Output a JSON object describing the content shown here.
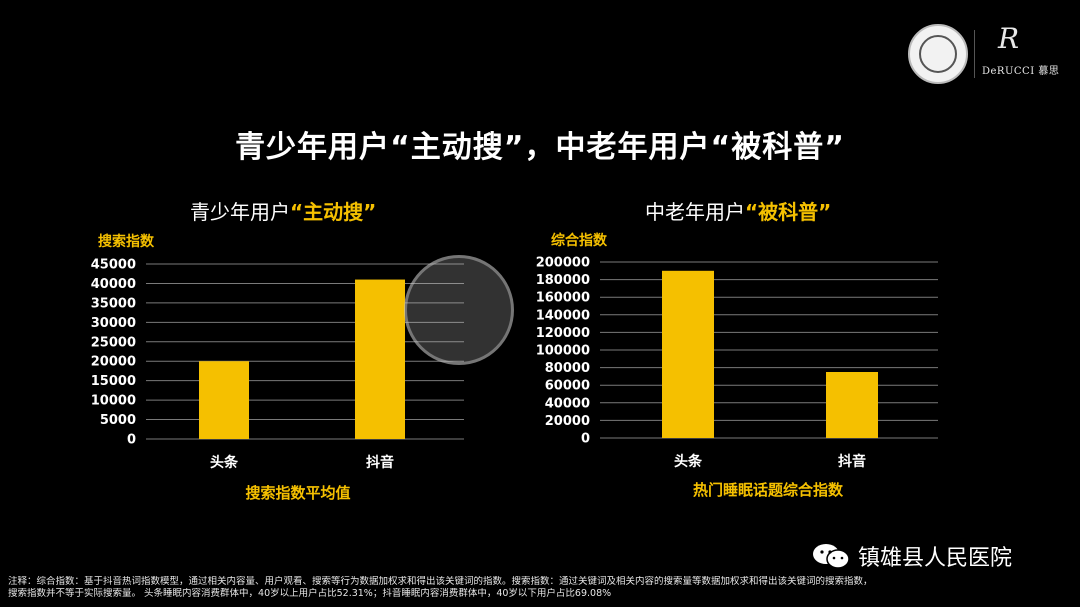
{
  "header": {
    "brand": "DeRUCCI 慕思",
    "brand_mark": "R"
  },
  "title_parts": [
    "青少年用户",
    "“主动搜”",
    "，中老年用户",
    "“被科普”"
  ],
  "panels": [
    {
      "title_prefix": "青少年用户",
      "title_highlight": "“主动搜”"
    },
    {
      "title_prefix": "中老年用户",
      "title_highlight": "“被科普”"
    }
  ],
  "chart_data": [
    {
      "type": "bar",
      "categories": [
        "头条",
        "抖音"
      ],
      "values": [
        20000,
        41000
      ],
      "ylabel": "搜索指数",
      "xlabel": "搜索指数平均值",
      "ylim": [
        0,
        45000
      ],
      "yticks": [
        0,
        5000,
        10000,
        15000,
        20000,
        25000,
        30000,
        35000,
        40000,
        45000
      ],
      "grid": true,
      "bar_color": "#f5c000"
    },
    {
      "type": "bar",
      "categories": [
        "头条",
        "抖音"
      ],
      "values": [
        190000,
        75000
      ],
      "ylabel": "综合指数",
      "xlabel": "热门睡眠话题综合指数",
      "ylim": [
        0,
        200000
      ],
      "yticks": [
        0,
        20000,
        40000,
        60000,
        80000,
        100000,
        120000,
        140000,
        160000,
        180000,
        200000
      ],
      "grid": true,
      "bar_color": "#f5c000"
    }
  ],
  "footnote": {
    "line1": "注释：综合指数：基于抖音热词指数模型，通过相关内容量、用户观看、搜索等行为数据加权求和得出该关键词的指数。搜索指数：通过关键词及相关内容的搜索量等数据加权求和得出该关键词的搜索指数，",
    "line2": "搜索指数并不等于实际搜索量。 头条睡眠内容消费群体中，40岁以上用户占比52.31%；抖音睡眠内容消费群体中，40岁以下用户占比69.08%"
  },
  "wechat": {
    "account": "镇雄县人民医院"
  },
  "colors": {
    "accent": "#f5c000",
    "background": "#000000",
    "grid": "#7a7a7a"
  }
}
